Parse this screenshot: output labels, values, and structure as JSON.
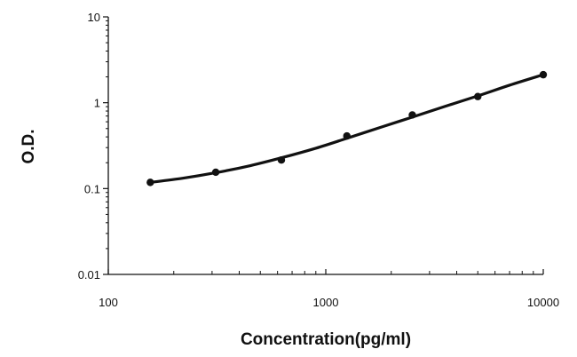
{
  "chart_data": {
    "type": "line",
    "title": "",
    "xlabel": "Concentration(pg/ml)",
    "ylabel": "O.D.",
    "x_scale": "log",
    "y_scale": "log",
    "xlim": [
      100,
      10000
    ],
    "ylim": [
      0.01,
      10
    ],
    "x_ticks": [
      "100",
      "1000",
      "10000"
    ],
    "y_ticks": [
      "0.01",
      "0.1",
      "1",
      "10"
    ],
    "grid": false,
    "legend": "none",
    "series": [
      {
        "points": [
          {
            "x": 156,
            "y": 0.118
          },
          {
            "x": 312,
            "y": 0.155
          },
          {
            "x": 625,
            "y": 0.215
          },
          {
            "x": 1250,
            "y": 0.41
          },
          {
            "x": 2500,
            "y": 0.72
          },
          {
            "x": 5000,
            "y": 1.18
          },
          {
            "x": 10000,
            "y": 2.12
          }
        ],
        "fit": [
          {
            "x": 156,
            "y": 0.118
          },
          {
            "x": 220,
            "y": 0.132
          },
          {
            "x": 312,
            "y": 0.153
          },
          {
            "x": 450,
            "y": 0.185
          },
          {
            "x": 625,
            "y": 0.228
          },
          {
            "x": 900,
            "y": 0.295
          },
          {
            "x": 1250,
            "y": 0.385
          },
          {
            "x": 1800,
            "y": 0.52
          },
          {
            "x": 2500,
            "y": 0.68
          },
          {
            "x": 3500,
            "y": 0.9
          },
          {
            "x": 5000,
            "y": 1.2
          },
          {
            "x": 7000,
            "y": 1.6
          },
          {
            "x": 10000,
            "y": 2.12
          }
        ]
      }
    ],
    "colors": {
      "line": "#111111",
      "marker": "#111111",
      "axis": "#111111"
    }
  }
}
